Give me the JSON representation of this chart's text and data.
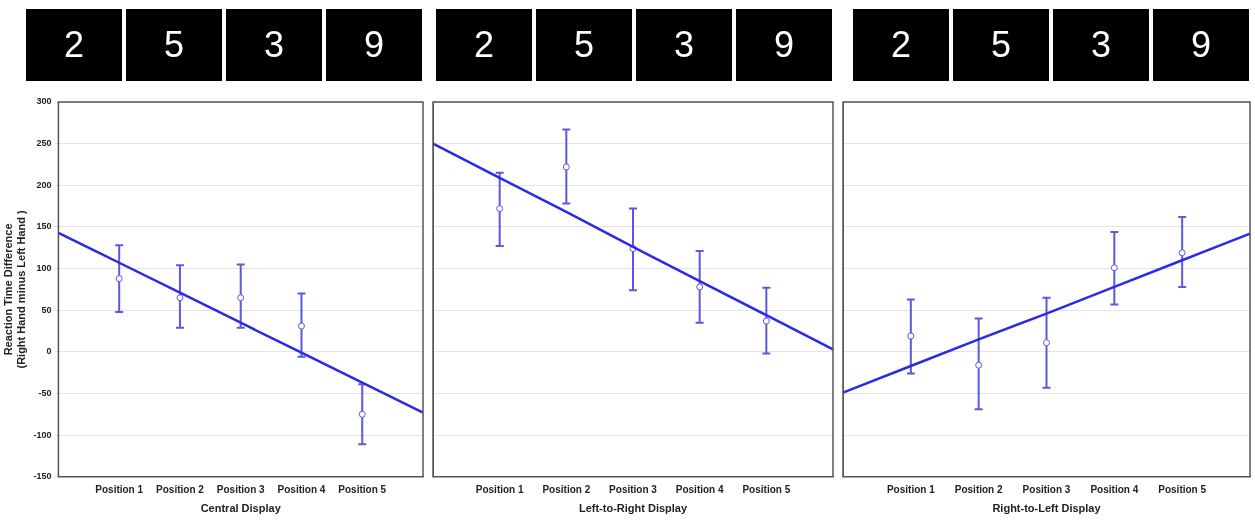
{
  "chart_data": [
    {
      "type": "scatter",
      "xlabel": "Central Display",
      "ylabel": "Reaction Time Difference\n(Right Hand minus Left Hand )",
      "annotations": [
        "2",
        "5",
        "3",
        "9"
      ],
      "grid": "y",
      "ylim": [
        -150,
        300
      ],
      "yticks": [
        -150,
        -100,
        -50,
        0,
        50,
        100,
        150,
        200,
        250,
        300
      ],
      "categories": [
        null,
        "Position 1",
        "Position 2",
        "Position 3",
        "Position 4",
        "Position 5",
        null
      ],
      "series": [
        {
          "color": "#5a5ae0",
          "marker": "circle",
          "values": [
            null,
            88,
            65,
            65,
            31,
            -75,
            null
          ],
          "errors": [
            null,
            [
              48,
              128
            ],
            [
              29,
              104
            ],
            [
              29,
              105
            ],
            [
              -6,
              70
            ],
            [
              -111,
              -39
            ],
            null
          ]
        },
        {
          "type": "line",
          "color": "#2a2ae8",
          "marker": "none",
          "values": [
            143,
            107,
            71,
            35,
            -1,
            -37,
            -73
          ]
        }
      ]
    },
    {
      "type": "scatter",
      "xlabel": "Left-to-Right Display",
      "annotations": [
        "2",
        "5",
        "3",
        "9"
      ],
      "grid": "y",
      "tick_labels": "x",
      "ylim": [
        -150,
        300
      ],
      "yticks": [
        -150,
        -100,
        -50,
        0,
        50,
        100,
        150,
        200,
        250,
        300
      ],
      "categories": [
        null,
        "Position 1",
        "Position 2",
        "Position 3",
        "Position 4",
        "Position 5",
        null
      ],
      "series": [
        {
          "color": "#5a5ae0",
          "marker": "circle",
          "values": [
            null,
            172,
            222,
            124,
            78,
            37,
            null
          ],
          "errors": [
            null,
            [
              127,
              215
            ],
            [
              178,
              267
            ],
            [
              74,
              172
            ],
            [
              35,
              121
            ],
            [
              -2,
              77
            ],
            null
          ]
        },
        {
          "type": "line",
          "color": "#2a2ae8",
          "marker": "none",
          "values": [
            250,
            209,
            168,
            126,
            85,
            44,
            3
          ]
        }
      ]
    },
    {
      "type": "scatter",
      "xlabel": "Right-to-Left Display",
      "annotations": [
        "2",
        "5",
        "3",
        "9"
      ],
      "grid": "y",
      "tick_labels": "x",
      "ylim": [
        -150,
        300
      ],
      "yticks": [
        -150,
        -100,
        -50,
        0,
        50,
        100,
        150,
        200,
        250,
        300
      ],
      "categories": [
        null,
        "Position 1",
        "Position 2",
        "Position 3",
        "Position 4",
        "Position 5",
        null
      ],
      "series": [
        {
          "color": "#5a5ae0",
          "marker": "circle",
          "values": [
            null,
            19,
            -16,
            11,
            101,
            119,
            null
          ],
          "errors": [
            null,
            [
              -26,
              63
            ],
            [
              -69,
              40
            ],
            [
              -43,
              65
            ],
            [
              57,
              144
            ],
            [
              78,
              162
            ],
            null
          ]
        },
        {
          "type": "line",
          "color": "#2a2ae8",
          "marker": "none",
          "values": [
            -49,
            -17,
            15,
            46,
            78,
            110,
            142
          ]
        }
      ]
    }
  ]
}
